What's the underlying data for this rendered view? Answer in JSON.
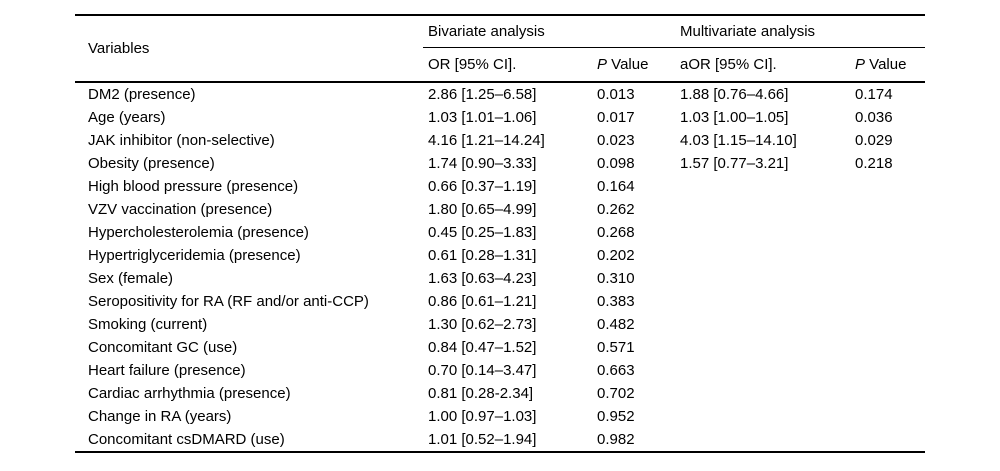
{
  "page": {
    "background": "#ffffff",
    "text_color": "#000000",
    "rule_color": "#000000"
  },
  "table": {
    "header": {
      "variables": "Variables",
      "bivariate": "Bivariate analysis",
      "multivariate": "Multivariate analysis",
      "or_ci": "OR [95% CI].",
      "aor_ci": "aOR [95% CI].",
      "p_italic": "P",
      "p_rest": " Value"
    },
    "rows": [
      {
        "variable": "DM2 (presence)",
        "or": "2.86 [1.25–6.58]",
        "p": "0.013",
        "aor": "1.88 [0.76–4.66]",
        "ap": "0.174"
      },
      {
        "variable": "Age (years)",
        "or": "1.03 [1.01–1.06]",
        "p": "0.017",
        "aor": "1.03 [1.00–1.05]",
        "ap": "0.036"
      },
      {
        "variable": "JAK inhibitor (non-selective)",
        "or": "4.16 [1.21–14.24]",
        "p": "0.023",
        "aor": "4.03 [1.15–14.10]",
        "ap": "0.029"
      },
      {
        "variable": "Obesity (presence)",
        "or": "1.74 [0.90–3.33]",
        "p": "0.098",
        "aor": "1.57 [0.77–3.21]",
        "ap": "0.218"
      },
      {
        "variable": "High blood pressure (presence)",
        "or": "0.66 [0.37–1.19]",
        "p": "0.164",
        "aor": "",
        "ap": ""
      },
      {
        "variable": "VZV vaccination (presence)",
        "or": "1.80 [0.65–4.99]",
        "p": "0.262",
        "aor": "",
        "ap": ""
      },
      {
        "variable": "Hypercholesterolemia (presence)",
        "or": "0.45 [0.25–1.83]",
        "p": "0.268",
        "aor": "",
        "ap": ""
      },
      {
        "variable": "Hypertriglyceridemia (presence)",
        "or": "0.61 [0.28–1.31]",
        "p": "0.202",
        "aor": "",
        "ap": ""
      },
      {
        "variable": "Sex (female)",
        "or": "1.63 [0.63–4.23]",
        "p": "0.310",
        "aor": "",
        "ap": ""
      },
      {
        "variable": "Seropositivity for RA (RF and/or anti-CCP)",
        "or": "0.86 [0.61–1.21]",
        "p": "0.383",
        "aor": "",
        "ap": ""
      },
      {
        "variable": "Smoking (current)",
        "or": "1.30 [0.62–2.73]",
        "p": "0.482",
        "aor": "",
        "ap": ""
      },
      {
        "variable": "Concomitant GC (use)",
        "or": "0.84 [0.47–1.52]",
        "p": "0.571",
        "aor": "",
        "ap": ""
      },
      {
        "variable": "Heart failure (presence)",
        "or": "0.70 [0.14–3.47]",
        "p": "0.663",
        "aor": "",
        "ap": ""
      },
      {
        "variable": "Cardiac arrhythmia (presence)",
        "or": "0.81 [0.28-2.34]",
        "p": "0.702",
        "aor": "",
        "ap": ""
      },
      {
        "variable": "Change in RA (years)",
        "or": "1.00 [0.97–1.03]",
        "p": "0.952",
        "aor": "",
        "ap": ""
      },
      {
        "variable": "Concomitant csDMARD (use)",
        "or": "1.01 [0.52–1.94]",
        "p": "0.982",
        "aor": "",
        "ap": ""
      }
    ]
  }
}
